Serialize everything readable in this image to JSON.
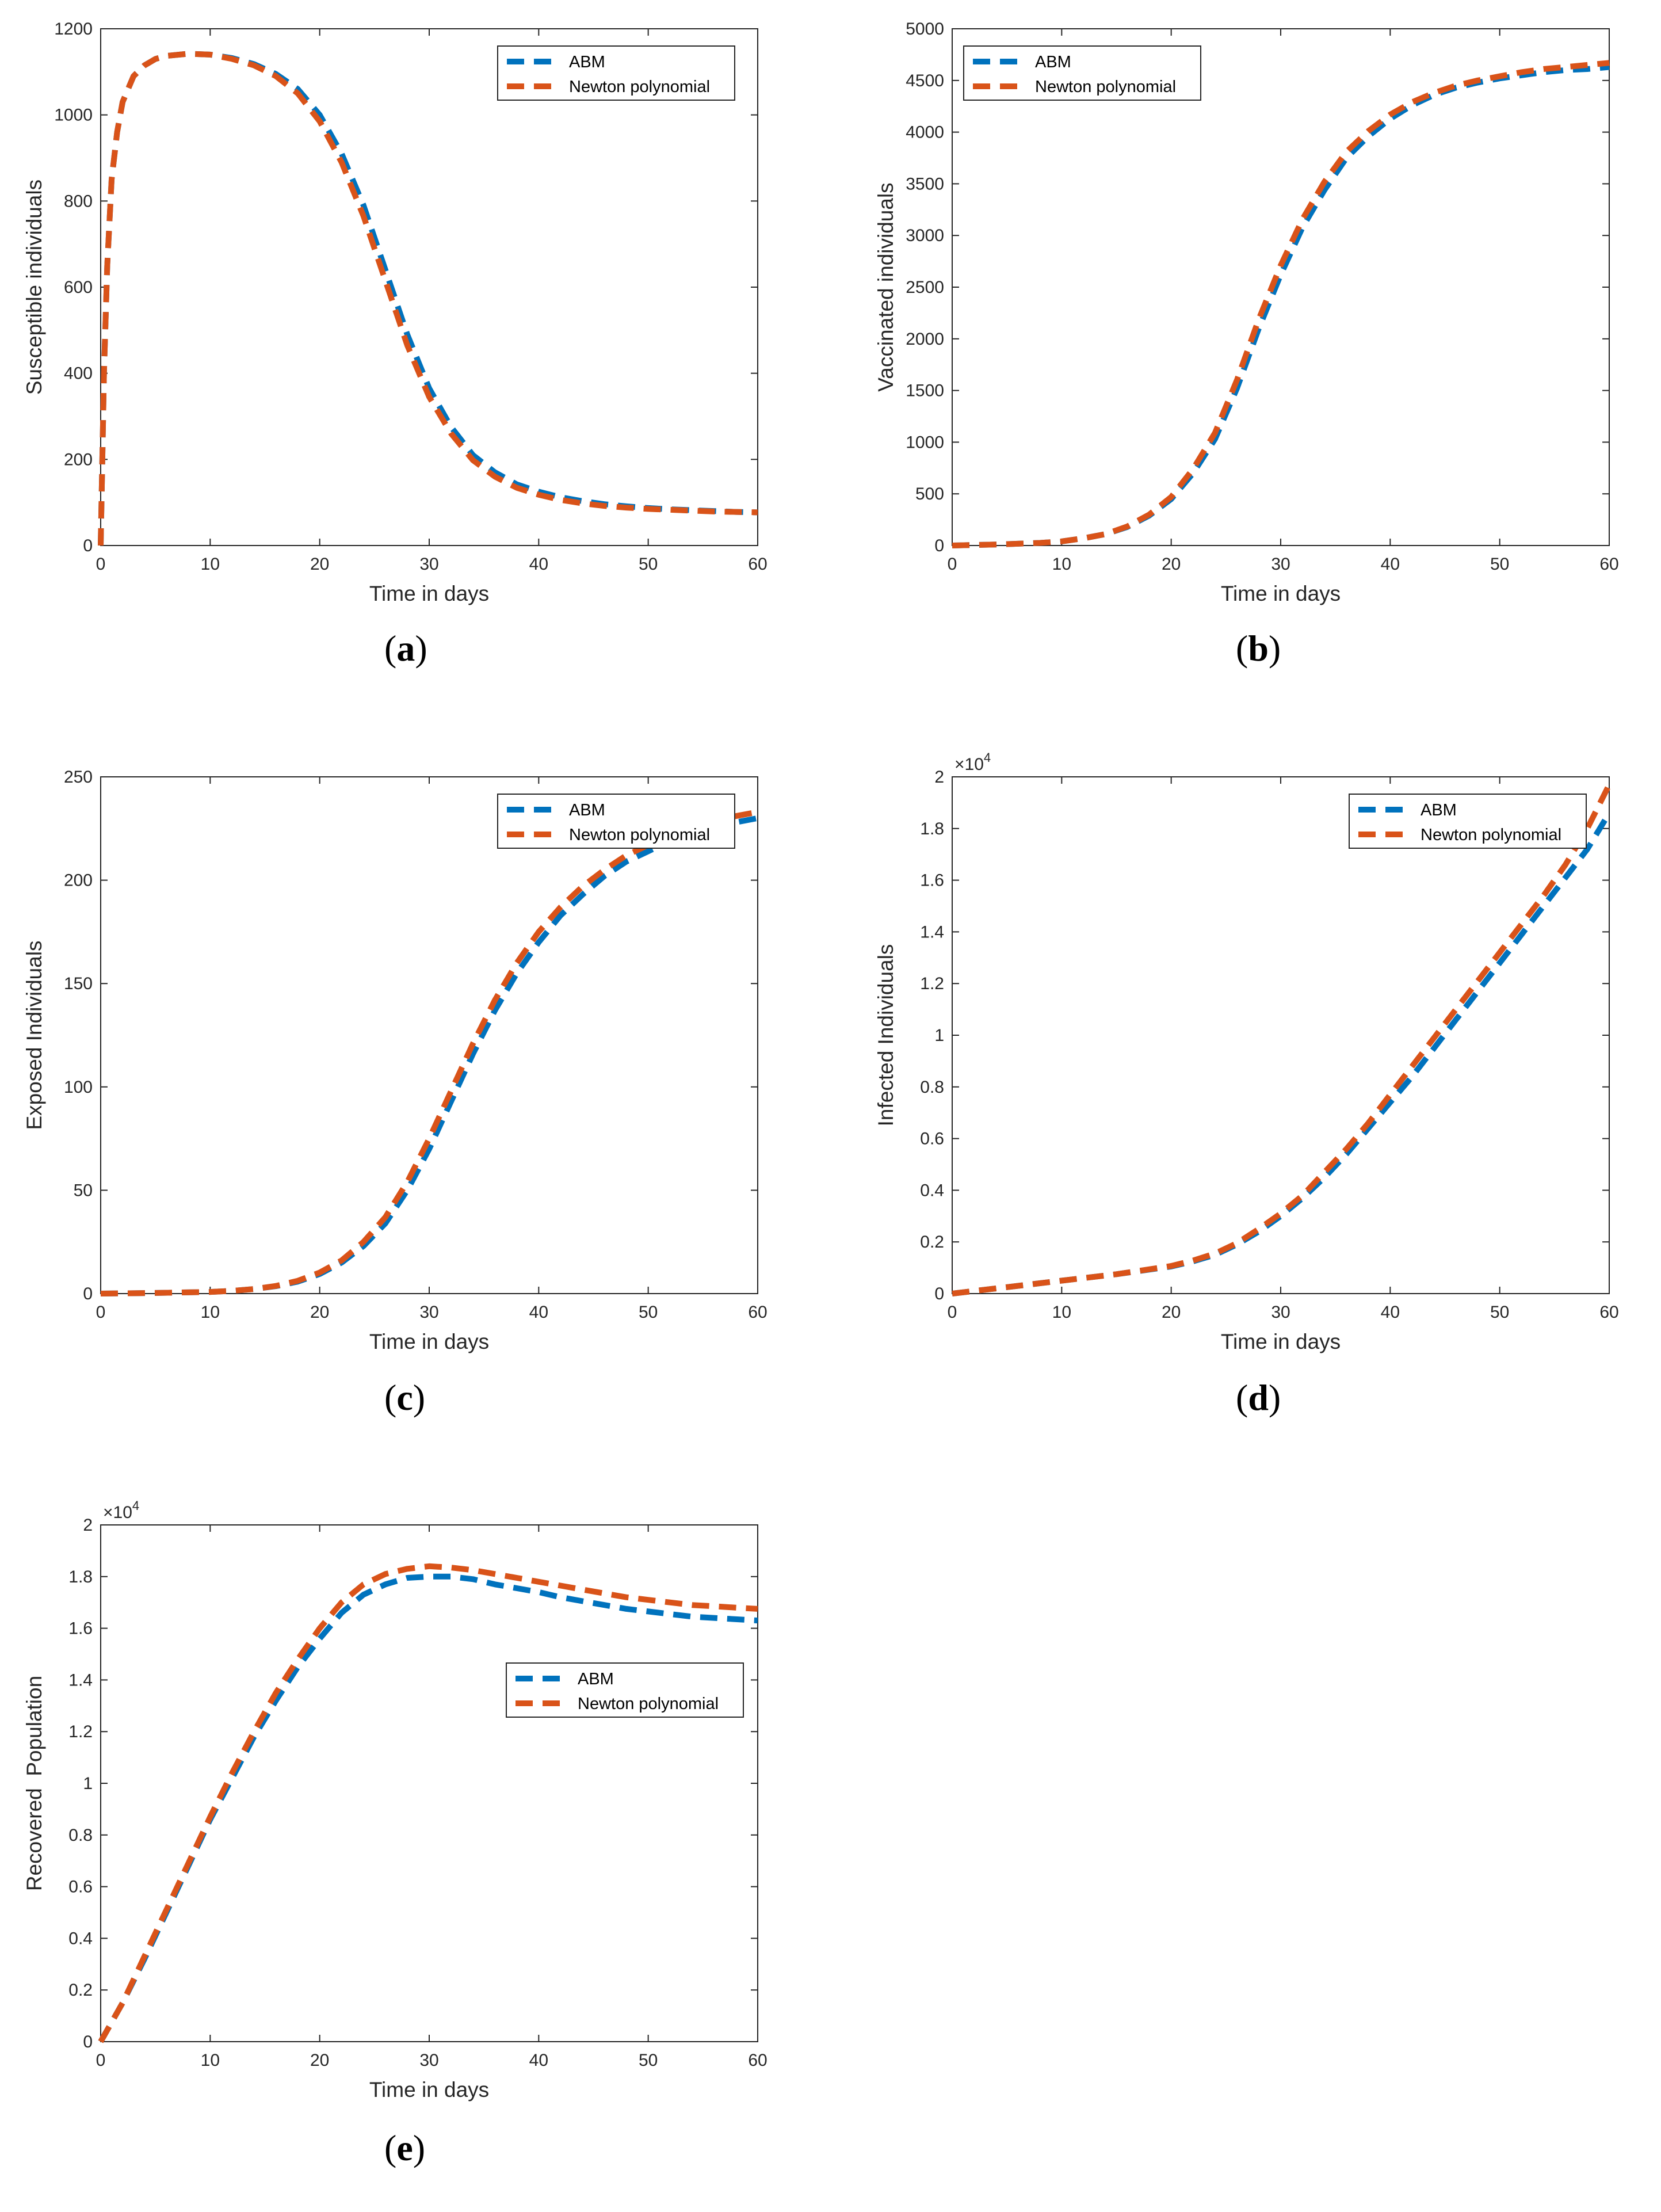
{
  "chart_data": [
    {
      "id": "a",
      "type": "line",
      "caption_open": "(",
      "caption_letter": "a",
      "caption_close": ")",
      "xlabel": "Time in days",
      "ylabel": "Susceptible individuals",
      "xlim": [
        0,
        60
      ],
      "ylim": [
        0,
        1200
      ],
      "xticks": [
        0,
        10,
        20,
        30,
        40,
        50,
        60
      ],
      "yticks": [
        0,
        200,
        400,
        600,
        800,
        1000,
        1200
      ],
      "ytick_labels": [
        "0",
        "200",
        "400",
        "600",
        "800",
        "1000",
        "1200"
      ],
      "exponent": null,
      "legend": [
        "ABM",
        "Newton polynomial"
      ],
      "legend_position": "top-right",
      "series": [
        {
          "name": "ABM",
          "color": "#0072BD",
          "x": [
            0,
            0.3,
            0.6,
            1,
            1.5,
            2,
            3,
            4,
            5,
            6,
            8,
            10,
            12,
            14,
            16,
            18,
            20,
            22,
            24,
            26,
            28,
            30,
            32,
            34,
            36,
            38,
            40,
            42,
            44,
            46,
            48,
            50,
            52,
            54,
            56,
            58,
            60
          ],
          "y": [
            0,
            400,
            650,
            850,
            960,
            1030,
            1090,
            1115,
            1130,
            1137,
            1142,
            1140,
            1132,
            1118,
            1095,
            1060,
            1000,
            910,
            790,
            640,
            490,
            365,
            275,
            210,
            170,
            142,
            125,
            112,
            103,
            96,
            91,
            87,
            84,
            82,
            80,
            78,
            77
          ]
        },
        {
          "name": "Newton polynomial",
          "color": "#D95319",
          "x": [
            0,
            0.3,
            0.6,
            1,
            1.5,
            2,
            3,
            4,
            5,
            6,
            8,
            10,
            12,
            14,
            16,
            18,
            20,
            22,
            24,
            26,
            28,
            30,
            32,
            34,
            36,
            38,
            40,
            42,
            44,
            46,
            48,
            50,
            52,
            54,
            56,
            58,
            60
          ],
          "y": [
            0,
            400,
            650,
            850,
            960,
            1030,
            1090,
            1115,
            1130,
            1137,
            1142,
            1140,
            1130,
            1115,
            1090,
            1050,
            985,
            890,
            765,
            615,
            465,
            345,
            260,
            198,
            160,
            134,
            118,
            106,
            98,
            92,
            88,
            85,
            83,
            81,
            79,
            78,
            77
          ]
        }
      ]
    },
    {
      "id": "b",
      "type": "line",
      "caption_open": "(",
      "caption_letter": "b",
      "caption_close": ")",
      "xlabel": "Time in days",
      "ylabel": "Vaccinated individuals",
      "xlim": [
        0,
        60
      ],
      "ylim": [
        0,
        5000
      ],
      "xticks": [
        0,
        10,
        20,
        30,
        40,
        50,
        60
      ],
      "yticks": [
        0,
        500,
        1000,
        1500,
        2000,
        2500,
        3000,
        3500,
        4000,
        4500,
        5000
      ],
      "ytick_labels": [
        "0",
        "500",
        "1000",
        "1500",
        "2000",
        "2500",
        "3000",
        "3500",
        "4000",
        "4500",
        "5000"
      ],
      "exponent": null,
      "legend": [
        "ABM",
        "Newton polynomial"
      ],
      "legend_position": "top-left",
      "series": [
        {
          "name": "ABM",
          "color": "#0072BD",
          "x": [
            0,
            4,
            8,
            10,
            12,
            14,
            16,
            18,
            20,
            22,
            24,
            26,
            28,
            30,
            32,
            34,
            36,
            38,
            40,
            42,
            44,
            46,
            48,
            50,
            52,
            54,
            56,
            58,
            60
          ],
          "y": [
            0,
            10,
            25,
            40,
            70,
            110,
            180,
            290,
            450,
            700,
            1030,
            1520,
            2100,
            2620,
            3080,
            3440,
            3750,
            3960,
            4130,
            4260,
            4360,
            4430,
            4480,
            4520,
            4550,
            4580,
            4600,
            4610,
            4630
          ]
        },
        {
          "name": "Newton polynomial",
          "color": "#D95319",
          "x": [
            0,
            4,
            8,
            10,
            12,
            14,
            16,
            18,
            20,
            22,
            24,
            26,
            28,
            30,
            32,
            34,
            36,
            38,
            40,
            42,
            44,
            46,
            48,
            50,
            52,
            54,
            56,
            58,
            60
          ],
          "y": [
            0,
            10,
            25,
            40,
            70,
            110,
            185,
            300,
            470,
            740,
            1090,
            1600,
            2190,
            2710,
            3160,
            3520,
            3810,
            4010,
            4170,
            4290,
            4380,
            4450,
            4500,
            4540,
            4580,
            4610,
            4630,
            4650,
            4670
          ]
        }
      ]
    },
    {
      "id": "c",
      "type": "line",
      "caption_open": "(",
      "caption_letter": "c",
      "caption_close": ")",
      "xlabel": "Time in days",
      "ylabel": "Exposed Individuals",
      "xlim": [
        0,
        60
      ],
      "ylim": [
        0,
        250
      ],
      "xticks": [
        0,
        10,
        20,
        30,
        40,
        50,
        60
      ],
      "yticks": [
        0,
        50,
        100,
        150,
        200,
        250
      ],
      "ytick_labels": [
        "0",
        "50",
        "100",
        "150",
        "200",
        "250"
      ],
      "exponent": null,
      "legend": [
        "ABM",
        "Newton polynomial"
      ],
      "legend_position": "top-right",
      "series": [
        {
          "name": "ABM",
          "color": "#0072BD",
          "x": [
            0,
            5,
            10,
            12,
            14,
            16,
            18,
            20,
            22,
            24,
            26,
            28,
            30,
            32,
            34,
            36,
            38,
            40,
            42,
            44,
            46,
            48,
            50,
            52,
            54,
            56,
            58,
            60
          ],
          "y": [
            0,
            0.3,
            0.8,
            1.3,
            2.2,
            3.6,
            5.8,
            9.5,
            15,
            23,
            34,
            50,
            70,
            93,
            116,
            137,
            155,
            170,
            183,
            193,
            202,
            209,
            214,
            219,
            222,
            225,
            228,
            230
          ]
        },
        {
          "name": "Newton polynomial",
          "color": "#D95319",
          "x": [
            0,
            5,
            10,
            12,
            14,
            16,
            18,
            20,
            22,
            24,
            26,
            28,
            30,
            32,
            34,
            36,
            38,
            40,
            42,
            44,
            46,
            48,
            50,
            52,
            54,
            56,
            58,
            60
          ],
          "y": [
            0,
            0.3,
            0.8,
            1.3,
            2.2,
            3.7,
            6.2,
            10.2,
            16,
            25,
            37,
            54,
            75,
            98,
            121,
            142,
            160,
            175,
            187,
            197,
            205,
            212,
            217,
            222,
            226,
            229,
            231,
            233
          ]
        }
      ]
    },
    {
      "id": "d",
      "type": "line",
      "caption_open": "(",
      "caption_letter": "d",
      "caption_close": ")",
      "xlabel": "Time in days",
      "ylabel": "Infected Individuals",
      "xlim": [
        0,
        60
      ],
      "ylim": [
        0,
        2
      ],
      "xticks": [
        0,
        10,
        20,
        30,
        40,
        50,
        60
      ],
      "yticks": [
        0,
        0.2,
        0.4,
        0.6,
        0.8,
        1,
        1.2,
        1.4,
        1.6,
        1.8,
        2
      ],
      "ytick_labels": [
        "0",
        "0.2",
        "0.4",
        "0.6",
        "0.8",
        "1",
        "1.2",
        "1.4",
        "1.6",
        "1.8",
        "2"
      ],
      "exponent": {
        "base": "×10",
        "power": "4"
      },
      "legend": [
        "ABM",
        "Newton polynomial"
      ],
      "legend_position": "top-right",
      "series": [
        {
          "name": "ABM",
          "color": "#0072BD",
          "x": [
            0,
            5,
            10,
            15,
            20,
            22,
            24,
            26,
            28,
            30,
            32,
            34,
            36,
            38,
            40,
            42,
            44,
            46,
            48,
            50,
            52,
            54,
            56,
            58,
            60
          ],
          "y": [
            0,
            0.025,
            0.05,
            0.075,
            0.105,
            0.125,
            0.15,
            0.19,
            0.24,
            0.3,
            0.37,
            0.45,
            0.54,
            0.64,
            0.74,
            0.84,
            0.95,
            1.06,
            1.17,
            1.28,
            1.39,
            1.5,
            1.61,
            1.72,
            1.86
          ]
        },
        {
          "name": "Newton polynomial",
          "color": "#D95319",
          "x": [
            0,
            5,
            10,
            15,
            20,
            22,
            24,
            26,
            28,
            30,
            32,
            34,
            36,
            38,
            40,
            42,
            44,
            46,
            48,
            50,
            52,
            54,
            56,
            58,
            60
          ],
          "y": [
            0,
            0.025,
            0.05,
            0.075,
            0.107,
            0.128,
            0.155,
            0.195,
            0.25,
            0.31,
            0.38,
            0.47,
            0.56,
            0.66,
            0.77,
            0.88,
            0.99,
            1.1,
            1.21,
            1.32,
            1.43,
            1.54,
            1.66,
            1.8,
            1.97
          ]
        }
      ]
    },
    {
      "id": "e",
      "type": "line",
      "caption_open": "(",
      "caption_letter": "e",
      "caption_close": ")",
      "xlabel": "Time in days",
      "ylabel": "Recovered  Population",
      "xlim": [
        0,
        60
      ],
      "ylim": [
        0,
        2
      ],
      "xticks": [
        0,
        10,
        20,
        30,
        40,
        50,
        60
      ],
      "yticks": [
        0,
        0.2,
        0.4,
        0.6,
        0.8,
        1,
        1.2,
        1.4,
        1.6,
        1.8,
        2
      ],
      "ytick_labels": [
        "0",
        "0.2",
        "0.4",
        "0.6",
        "0.8",
        "1",
        "1.2",
        "1.4",
        "1.6",
        "1.8",
        "2"
      ],
      "exponent": {
        "base": "×10",
        "power": "4"
      },
      "legend": [
        "ABM",
        "Newton polynomial"
      ],
      "legend_position": "middle-right",
      "series": [
        {
          "name": "ABM",
          "color": "#0072BD",
          "x": [
            0,
            2,
            4,
            6,
            8,
            10,
            12,
            14,
            16,
            18,
            20,
            22,
            24,
            26,
            28,
            30,
            32,
            34,
            36,
            38,
            40,
            42,
            44,
            46,
            48,
            50,
            52,
            54,
            56,
            58,
            60
          ],
          "y": [
            0,
            0.15,
            0.32,
            0.5,
            0.68,
            0.86,
            1.02,
            1.18,
            1.32,
            1.45,
            1.56,
            1.66,
            1.73,
            1.77,
            1.795,
            1.8,
            1.8,
            1.79,
            1.77,
            1.755,
            1.74,
            1.72,
            1.705,
            1.69,
            1.675,
            1.665,
            1.655,
            1.645,
            1.64,
            1.635,
            1.63
          ]
        },
        {
          "name": "Newton polynomial",
          "color": "#D95319",
          "x": [
            0,
            2,
            4,
            6,
            8,
            10,
            12,
            14,
            16,
            18,
            20,
            22,
            24,
            26,
            28,
            30,
            32,
            34,
            36,
            38,
            40,
            42,
            44,
            46,
            48,
            50,
            52,
            54,
            56,
            58,
            60
          ],
          "y": [
            0,
            0.15,
            0.33,
            0.51,
            0.69,
            0.87,
            1.04,
            1.2,
            1.35,
            1.48,
            1.6,
            1.7,
            1.77,
            1.81,
            1.83,
            1.84,
            1.835,
            1.825,
            1.81,
            1.795,
            1.78,
            1.765,
            1.75,
            1.735,
            1.72,
            1.71,
            1.7,
            1.69,
            1.685,
            1.68,
            1.675
          ]
        }
      ]
    }
  ]
}
